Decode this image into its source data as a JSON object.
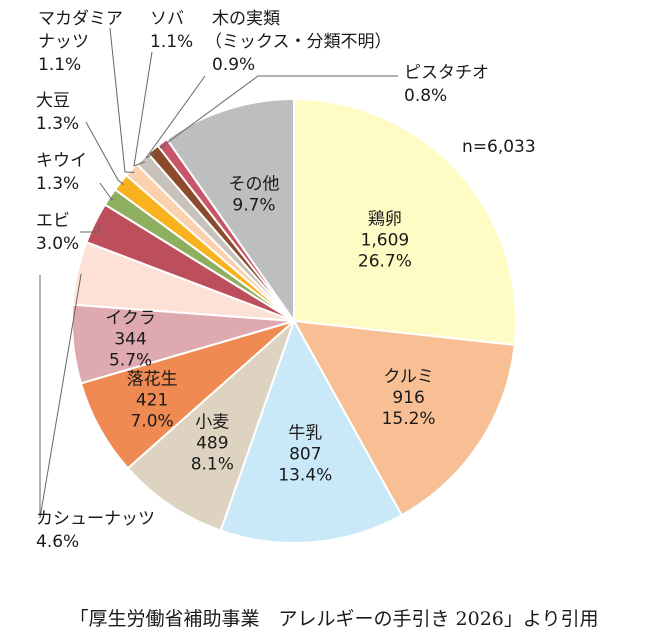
{
  "chart_data": {
    "type": "pie",
    "n_label": "n=6,033",
    "slices": [
      {
        "name": "鶏卵",
        "count": "1,609",
        "percent": "26.7%",
        "value": 26.7,
        "color": "#FFFBC4"
      },
      {
        "name": "クルミ",
        "count": "916",
        "percent": "15.2%",
        "value": 15.2,
        "color": "#F8BF94"
      },
      {
        "name": "牛乳",
        "count": "807",
        "percent": "13.4%",
        "value": 13.4,
        "color": "#C9E9F9"
      },
      {
        "name": "小麦",
        "count": "489",
        "percent": "8.1%",
        "value": 8.1,
        "color": "#DDD3C0"
      },
      {
        "name": "落花生",
        "count": "421",
        "percent": "7.0%",
        "value": 7.0,
        "color": "#EF8A52"
      },
      {
        "name": "イクラ",
        "count": "344",
        "percent": "5.7%",
        "value": 5.7,
        "color": "#DFA9B0"
      },
      {
        "name": "カシューナッツ",
        "count": "",
        "percent": "4.6%",
        "value": 4.6,
        "color": "#FDE1D6"
      },
      {
        "name": "エビ",
        "count": "",
        "percent": "3.0%",
        "value": 3.0,
        "color": "#BD4E5C"
      },
      {
        "name": "キウイ",
        "count": "",
        "percent": "1.3%",
        "value": 1.3,
        "color": "#8FAF60"
      },
      {
        "name": "大豆",
        "count": "",
        "percent": "1.3%",
        "value": 1.3,
        "color": "#F7B21D"
      },
      {
        "name": "マカダミアナッツ",
        "count": "",
        "percent": "1.1%",
        "value": 1.1,
        "color": "#FBD0AC"
      },
      {
        "name": "ソバ",
        "count": "",
        "percent": "1.1%",
        "value": 1.1,
        "color": "#C7C2BA"
      },
      {
        "name": "木の実類（ミックス・分類不明）",
        "count": "",
        "percent": "0.9%",
        "value": 0.9,
        "color": "#8C4A2D"
      },
      {
        "name": "ピスタチオ",
        "count": "",
        "percent": "0.8%",
        "value": 0.8,
        "color": "#C8566A"
      },
      {
        "name": "その他",
        "count": "",
        "percent": "9.7%",
        "value": 9.7,
        "color": "#BCBEC0"
      }
    ],
    "outside_labels": {
      "macadamia_1": "マカダミア",
      "macadamia_2": "ナッツ",
      "macadamia_pct": "1.1%",
      "soba": "ソバ",
      "soba_pct": "1.1%",
      "nuts_1": "木の実類",
      "nuts_2": "（ミックス・分類不明）",
      "nuts_pct": "0.9%",
      "pistachio": "ピスタチオ",
      "pistachio_pct": "0.8%",
      "soy": "大豆",
      "soy_pct": "1.3%",
      "kiwi": "キウイ",
      "kiwi_pct": "1.3%",
      "shrimp": "エビ",
      "shrimp_pct": "3.0%",
      "cashew": "カシューナッツ",
      "cashew_pct": "4.6%"
    }
  },
  "caption": "「厚生労働省補助事業　アレルギーの手引き 2026」より引用"
}
